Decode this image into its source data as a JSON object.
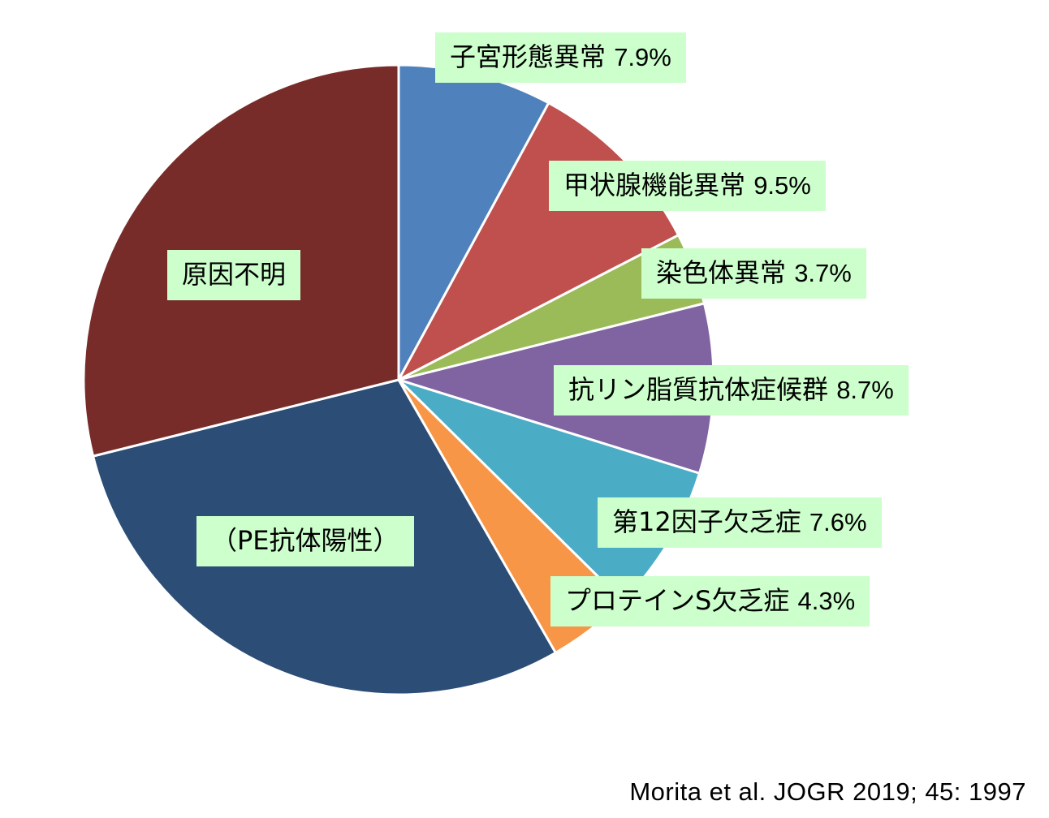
{
  "chart_data": {
    "type": "pie",
    "title": "",
    "slices": [
      {
        "label": "子宮形態異常",
        "value": 7.9,
        "value_label": "7.9%",
        "color": "#4f81bd"
      },
      {
        "label": "甲状腺機能異常",
        "value": 9.5,
        "value_label": "9.5%",
        "color": "#c0504d"
      },
      {
        "label": "染色体異常",
        "value": 3.7,
        "value_label": "3.7%",
        "color": "#9bbb59"
      },
      {
        "label": "抗リン脂質抗体症候群",
        "value": 8.7,
        "value_label": "8.7%",
        "color": "#8064a2"
      },
      {
        "label": "第12因子欠乏症",
        "value": 7.6,
        "value_label": "7.6%",
        "color": "#4bacc6"
      },
      {
        "label": "プロテインS欠乏症",
        "value": 4.3,
        "value_label": "4.3%",
        "color": "#f79646"
      },
      {
        "label": "（PE抗体陽性）",
        "value": 29.4,
        "value_label": "",
        "color": "#2c4d75"
      },
      {
        "label": "原因不明",
        "value": 28.9,
        "value_label": "",
        "color": "#772c2a"
      }
    ],
    "legend": "none",
    "start_angle": "12 o'clock, clockwise"
  },
  "source": "Morita et al. JOGR 2019; 45: 1997"
}
